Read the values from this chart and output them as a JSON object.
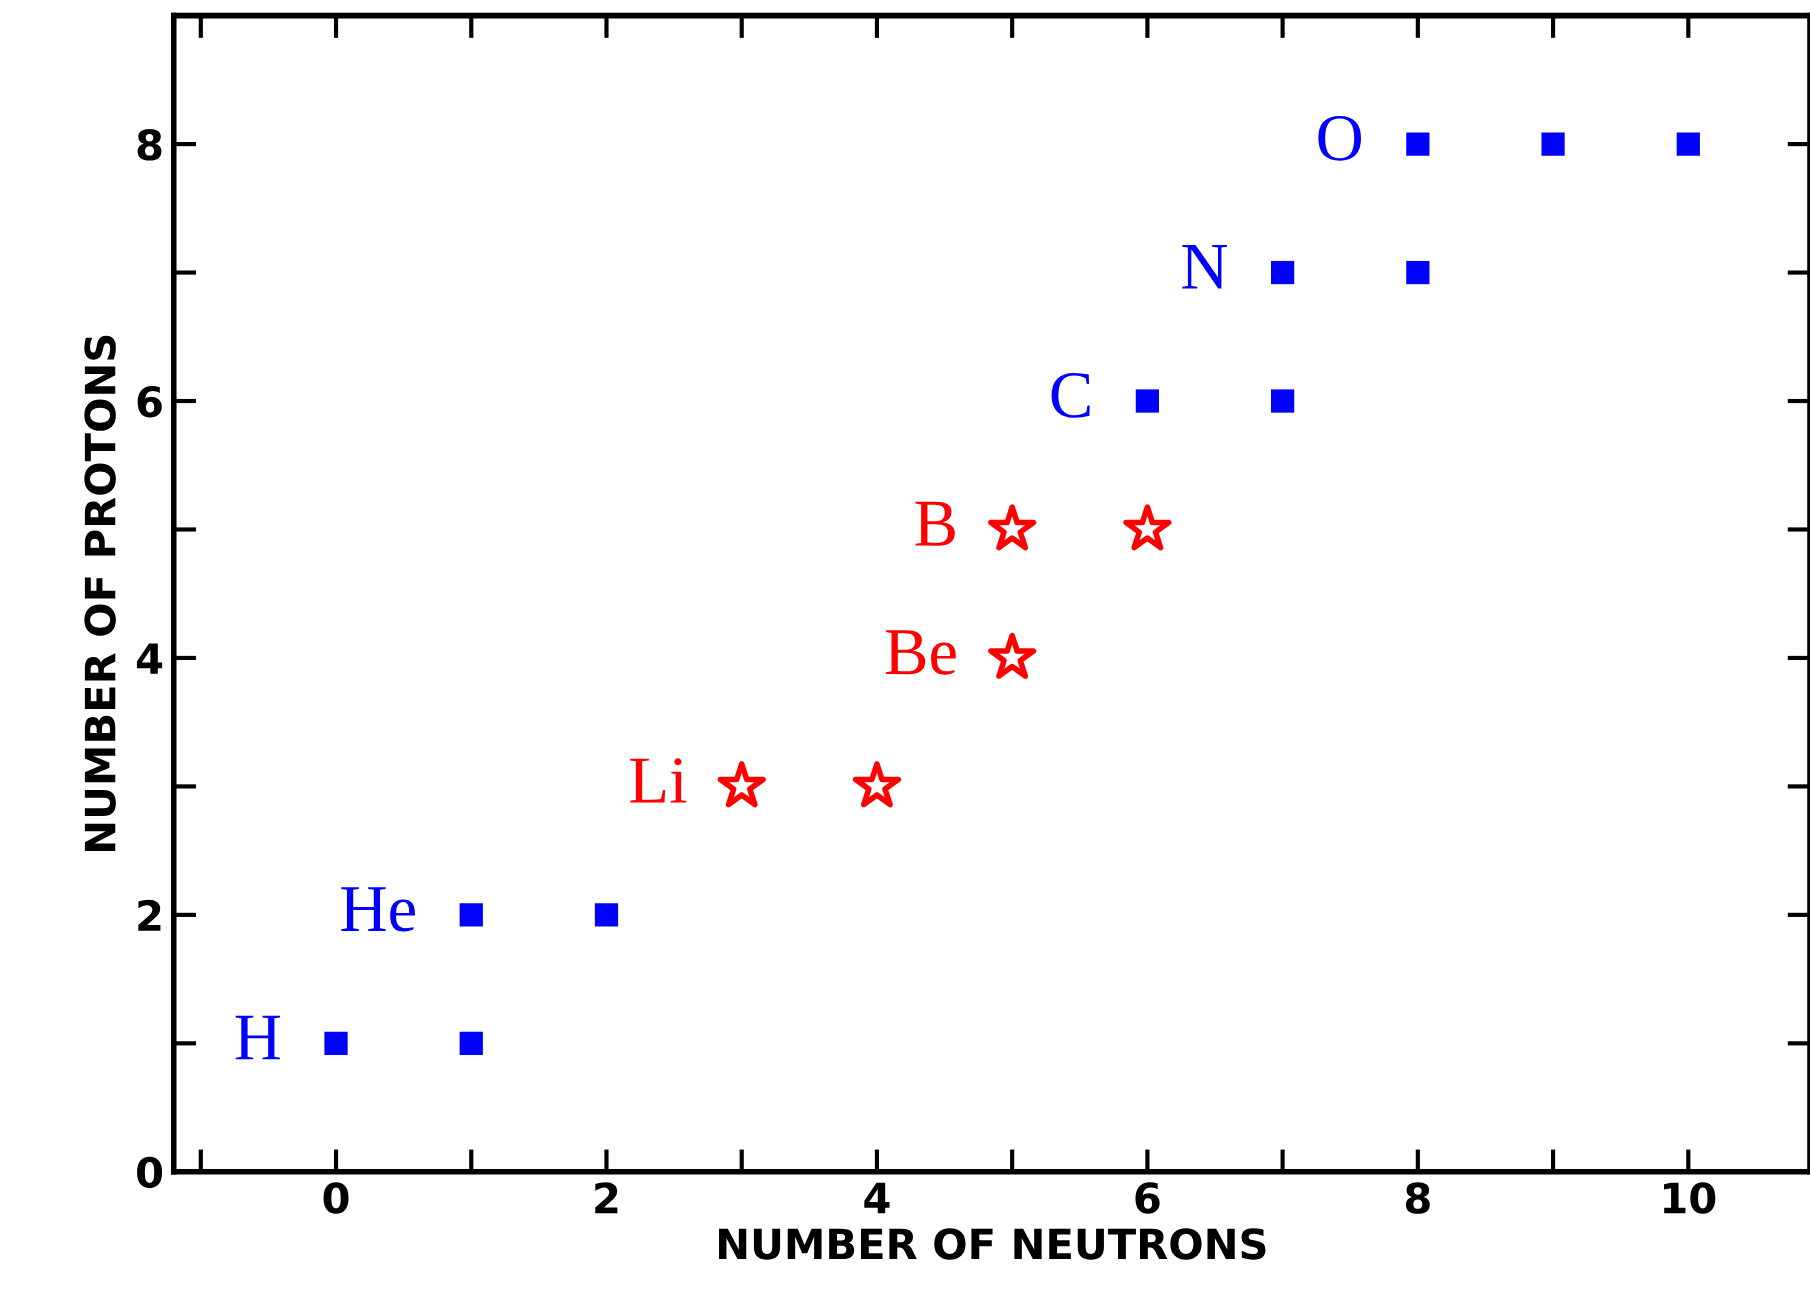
{
  "chart_data": {
    "type": "scatter",
    "xlabel": "NUMBER OF NEUTRONS",
    "ylabel": "NUMBER OF PROTONS",
    "xlim": [
      -1.2,
      10.9
    ],
    "ylim": [
      0,
      9
    ],
    "xticks": [
      {
        "value": -1,
        "label": null
      },
      0,
      {
        "value": 1,
        "label": null
      },
      2,
      {
        "value": 3,
        "label": null
      },
      4,
      {
        "value": 5,
        "label": null
      },
      6,
      {
        "value": 7,
        "label": null
      },
      8,
      {
        "value": 9,
        "label": null
      },
      10
    ],
    "yticks": [
      0,
      {
        "value": 1,
        "label": null
      },
      2,
      {
        "value": 3,
        "label": null
      },
      4,
      {
        "value": 5,
        "label": null
      },
      6,
      {
        "value": 7,
        "label": null
      },
      8
    ],
    "grid": false,
    "legend": false,
    "series": [
      {
        "color": "#0000ff",
        "marker": "square",
        "x": [
          0,
          1,
          1,
          2,
          6,
          7,
          7,
          8,
          8,
          9,
          10
        ],
        "values": [
          1,
          1,
          2,
          2,
          6,
          6,
          7,
          7,
          8,
          8,
          8
        ]
      },
      {
        "color": "#ff0000",
        "marker": "star",
        "x": [
          3,
          4,
          5,
          5,
          6
        ],
        "values": [
          3,
          3,
          4,
          5,
          5
        ]
      }
    ],
    "annotations": [
      "H",
      "He",
      "Li",
      "Be",
      "B",
      "C",
      "N",
      "O"
    ]
  }
}
